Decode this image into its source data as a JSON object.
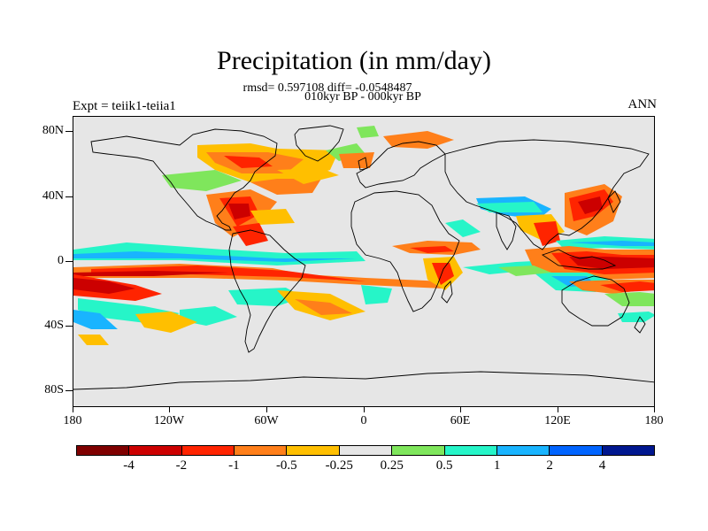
{
  "title": "Precipitation (in mm/day)",
  "stats_line": "rmsd= 0.597108 diff= -0.0548487",
  "period_line": "010kyr BP - 000kyr BP",
  "experiment_label": "Expt = teiik1-teiia1",
  "season_label": "ANN",
  "axes": {
    "y_ticks": [
      "80N",
      "40N",
      "0",
      "40S",
      "80S"
    ],
    "x_ticks": [
      "180",
      "120W",
      "60W",
      "0",
      "60E",
      "120E",
      "180"
    ]
  },
  "colorbar": {
    "labels": [
      "-4",
      "-2",
      "-1",
      "-0.5",
      "-0.25",
      "0.25",
      "0.5",
      "1",
      "2",
      "4"
    ],
    "colors": [
      "#7f0000",
      "#cc0000",
      "#ff2400",
      "#ff7f1a",
      "#ffbf00",
      "#e6e6e6",
      "#7fe65c",
      "#26f5c8",
      "#19b4ff",
      "#0064ff",
      "#00178f"
    ]
  },
  "map": {
    "background": "#e6e6e6",
    "projection": "cylindrical equidistant",
    "lat_range": [
      -90,
      90
    ],
    "lon_range": [
      -180,
      180
    ]
  }
}
